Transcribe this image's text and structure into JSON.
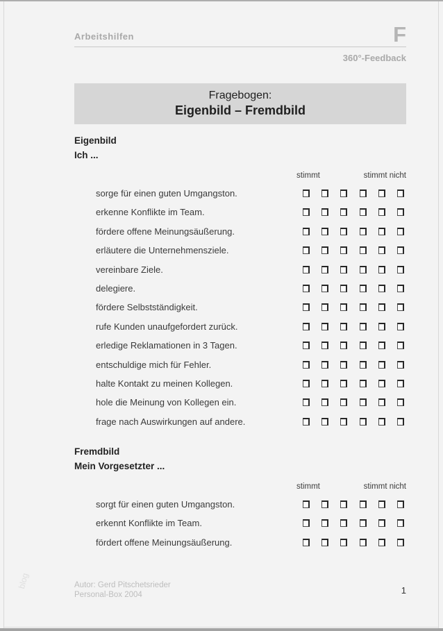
{
  "header": {
    "category": "Arbeitshilfen",
    "letter": "F",
    "subtitle": "360°-Feedback"
  },
  "title": {
    "line1": "Fragebogen:",
    "line2": "Eigenbild – Fremdbild"
  },
  "scale": {
    "left_label": "stimmt",
    "right_label": "stimmt nicht",
    "options": 6
  },
  "sections": [
    {
      "heading": "Eigenbild",
      "lead": "Ich ...",
      "items": [
        "sorge für einen guten Umgangston.",
        "erkenne Konflikte im Team.",
        "fördere offene Meinungsäußerung.",
        "erläutere die Unternehmensziele.",
        "vereinbare Ziele.",
        "delegiere.",
        "fördere Selbstständigkeit.",
        "rufe Kunden unaufgefordert zurück.",
        "erledige Reklamationen in 3 Tagen.",
        "entschuldige mich für Fehler.",
        "halte Kontakt zu meinen Kollegen.",
        "hole die Meinung von Kollegen ein.",
        "frage nach Auswirkungen auf andere."
      ]
    },
    {
      "heading": "Fremdbild",
      "lead": "Mein Vorgesetzter ...",
      "items": [
        "sorgt für einen guten Umgangston.",
        "erkennt Konflikte im Team.",
        "fördert offene Meinungsäußerung."
      ]
    }
  ],
  "footer": {
    "author_line1": "Autor: Gerd Pitschetsrieder",
    "author_line2": "Personal-Box 2004",
    "page_number": "1"
  },
  "watermark": "blog",
  "colors": {
    "banner_bg": "#d6d6d6",
    "page_bg": "#f3f3f3",
    "muted_text": "#a9a9a9"
  }
}
